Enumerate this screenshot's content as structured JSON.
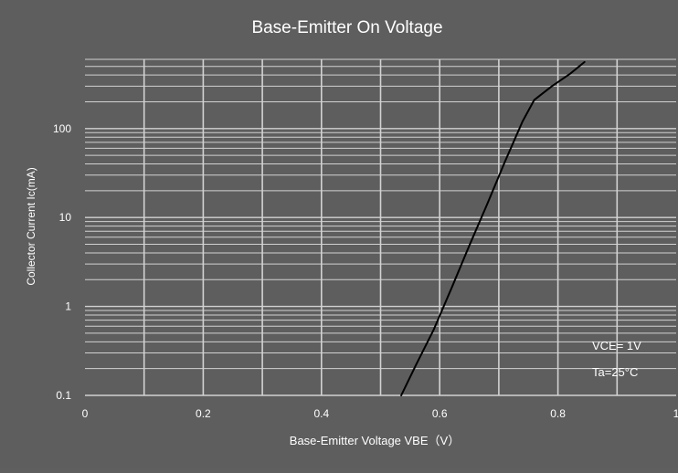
{
  "chart_data": {
    "type": "line",
    "title": "Base-Emitter On Voltage",
    "xlabel": "Base-Emitter Voltage  VBE（V）",
    "ylabel": "Collector Current  Ic(mA)",
    "xlim": [
      0,
      1
    ],
    "ylim": [
      0.1,
      600
    ],
    "y_scale": "log",
    "grid": true,
    "x_ticks": [
      {
        "v": 0,
        "label": "0"
      },
      {
        "v": 0.2,
        "label": "0.2"
      },
      {
        "v": 0.4,
        "label": "0.4"
      },
      {
        "v": 0.6,
        "label": "0.6"
      },
      {
        "v": 0.8,
        "label": "0.8"
      },
      {
        "v": 1,
        "label": "1"
      }
    ],
    "y_ticks": [
      {
        "v": 0.1,
        "label": "0.1"
      },
      {
        "v": 1,
        "label": "1"
      },
      {
        "v": 10,
        "label": "10"
      },
      {
        "v": 100,
        "label": "100"
      }
    ],
    "series": [
      {
        "x": [
          0.535,
          0.56,
          0.59,
          0.62,
          0.65,
          0.68,
          0.71,
          0.74,
          0.76,
          0.79,
          0.82,
          0.845
        ],
        "y": [
          0.1,
          0.22,
          0.55,
          1.6,
          4.8,
          14,
          42,
          120,
          210,
          300,
          410,
          560
        ]
      }
    ],
    "annotations": [
      "VCE= 1V",
      "Ta=25°C"
    ],
    "colors": {
      "background": "#5e5e5e",
      "grid": "#d2d2d2",
      "curve": "#000000",
      "text": "#ffffff"
    }
  }
}
